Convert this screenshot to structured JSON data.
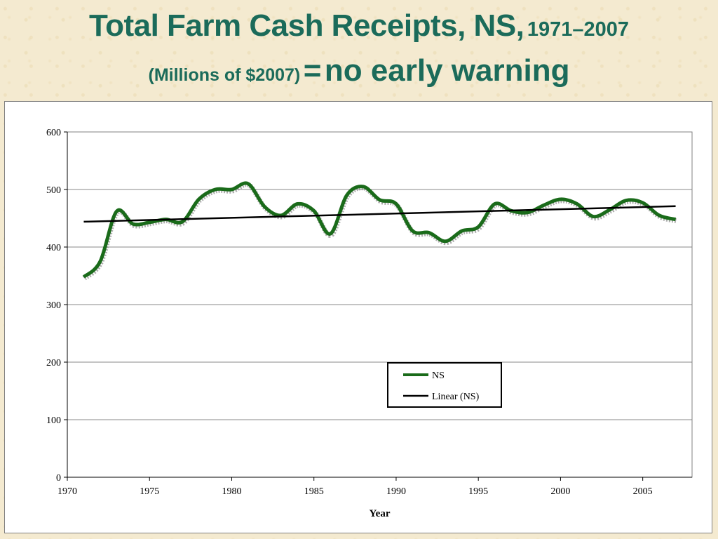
{
  "title": {
    "main": "Total Farm Cash Receipts, NS,",
    "years": "1971–2007",
    "unit": "(Millions of $2007)",
    "equals": "=",
    "message": "no early warning"
  },
  "chart_data": {
    "type": "line",
    "xlabel": "Year",
    "ylabel": "",
    "xlim": [
      1970,
      2008
    ],
    "ylim": [
      0,
      600
    ],
    "x_ticks": [
      "1970",
      "1975",
      "1980",
      "1985",
      "1990",
      "1995",
      "2000",
      "2005"
    ],
    "y_ticks": [
      "0",
      "100",
      "200",
      "300",
      "400",
      "500",
      "600"
    ],
    "grid": "horizontal",
    "legend_position": "center-bottom",
    "x": [
      1971,
      1972,
      1973,
      1974,
      1975,
      1976,
      1977,
      1978,
      1979,
      1980,
      1981,
      1982,
      1983,
      1984,
      1985,
      1986,
      1987,
      1988,
      1989,
      1990,
      1991,
      1992,
      1993,
      1994,
      1995,
      1996,
      1997,
      1998,
      1999,
      2000,
      2001,
      2002,
      2003,
      2004,
      2005,
      2006,
      2007
    ],
    "series": [
      {
        "name": "NS",
        "color": "#1a6b1a",
        "values": [
          348,
          375,
          462,
          440,
          443,
          448,
          444,
          483,
          500,
          500,
          510,
          470,
          455,
          475,
          463,
          423,
          490,
          505,
          482,
          475,
          428,
          425,
          410,
          428,
          435,
          475,
          463,
          460,
          473,
          483,
          475,
          453,
          465,
          481,
          477,
          455,
          448
        ]
      },
      {
        "name": "Linear (NS)",
        "color": "#000000",
        "trend": true,
        "values_endpoints": [
          444,
          471
        ]
      }
    ]
  }
}
